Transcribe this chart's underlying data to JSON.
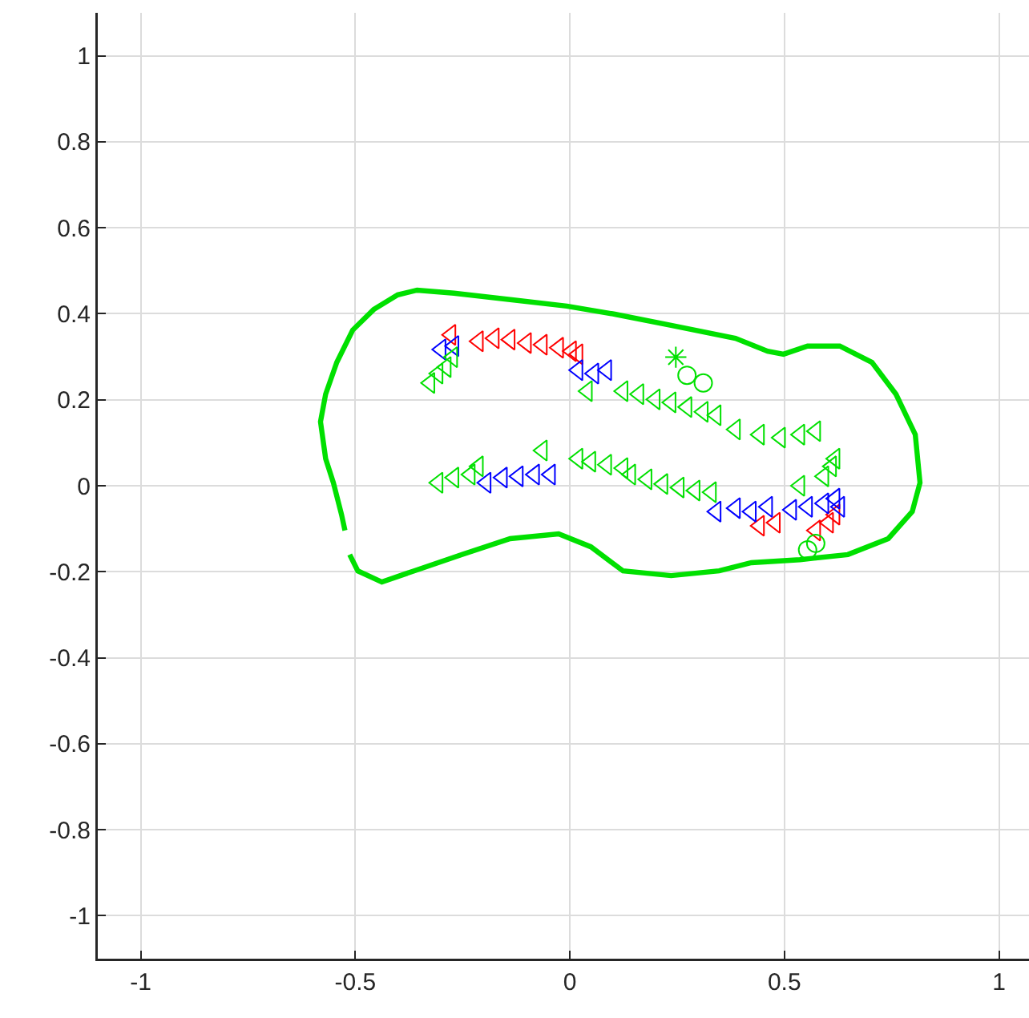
{
  "chart_data": {
    "type": "scatter",
    "xlim": [
      -1.1,
      1.07
    ],
    "ylim": [
      -1.1,
      1.1
    ],
    "xticks": [
      -1,
      -0.5,
      0,
      0.5,
      1
    ],
    "yticks": [
      -1,
      -0.8,
      -0.6,
      -0.4,
      -0.2,
      0,
      0.2,
      0.4,
      0.6,
      0.8,
      1
    ],
    "grid": true,
    "series": [
      {
        "type": "line",
        "marker": "none",
        "color": "#00e000",
        "x": [
          -0.513,
          -0.494,
          -0.438,
          -0.363,
          -0.251,
          -0.139,
          -0.026,
          0.049,
          0.124,
          0.236,
          0.348,
          0.423,
          0.536,
          0.648,
          0.742,
          0.798,
          0.816,
          0.805,
          0.76,
          0.704,
          0.629,
          0.554,
          0.498,
          0.461,
          0.386,
          0.236,
          0.105,
          -0.007,
          -0.139,
          -0.27,
          -0.356,
          -0.401,
          -0.457,
          -0.506,
          -0.543,
          -0.569,
          -0.581,
          -0.569,
          -0.551,
          -0.532,
          -0.524
        ],
        "values": [
          -0.16,
          -0.198,
          -0.224,
          -0.198,
          -0.16,
          -0.123,
          -0.112,
          -0.142,
          -0.198,
          -0.209,
          -0.198,
          -0.179,
          -0.172,
          -0.16,
          -0.123,
          -0.06,
          0.007,
          0.119,
          0.213,
          0.287,
          0.325,
          0.325,
          0.306,
          0.313,
          0.343,
          0.373,
          0.399,
          0.418,
          0.433,
          0.448,
          0.455,
          0.444,
          0.41,
          0.362,
          0.287,
          0.213,
          0.149,
          0.063,
          0.007,
          -0.067,
          -0.104
        ]
      },
      {
        "marker": "triangle",
        "color": "#ff0000",
        "x": [
          -0.277,
          -0.213,
          -0.176,
          -0.139,
          -0.101,
          -0.064,
          -0.026,
          0.004,
          0.019,
          0.442,
          0.479,
          0.573,
          0.603,
          0.618
        ],
        "values": [
          0.351,
          0.336,
          0.343,
          0.34,
          0.332,
          0.328,
          0.321,
          0.313,
          0.306,
          -0.093,
          -0.086,
          -0.104,
          -0.086,
          -0.067
        ]
      },
      {
        "marker": "triangle",
        "color": "#0000ff",
        "x": [
          -0.3,
          -0.27,
          0.019,
          0.056,
          0.086,
          -0.195,
          -0.157,
          -0.12,
          -0.082,
          -0.045,
          0.341,
          0.386,
          0.423,
          0.461,
          0.517,
          0.554,
          0.592,
          0.618,
          0.629
        ],
        "values": [
          0.317,
          0.325,
          0.269,
          0.261,
          0.269,
          0.007,
          0.019,
          0.022,
          0.026,
          0.026,
          -0.06,
          -0.052,
          -0.06,
          -0.049,
          -0.056,
          -0.049,
          -0.041,
          -0.03,
          -0.049
        ]
      },
      {
        "marker": "triangle",
        "color": "#00e000",
        "x": [
          -0.326,
          -0.307,
          -0.288,
          -0.273,
          -0.307,
          -0.27,
          -0.232,
          -0.213,
          -0.064,
          0.019,
          0.049,
          0.086,
          0.124,
          0.041,
          0.124,
          0.161,
          0.199,
          0.236,
          0.273,
          0.311,
          0.341,
          0.386,
          0.442,
          0.491,
          0.536,
          0.573,
          0.142,
          0.18,
          0.217,
          0.255,
          0.292,
          0.33,
          0.536,
          0.592,
          0.61,
          0.618
        ],
        "values": [
          0.239,
          0.261,
          0.276,
          0.299,
          0.007,
          0.019,
          0.026,
          0.045,
          0.082,
          0.063,
          0.056,
          0.049,
          0.041,
          0.22,
          0.22,
          0.213,
          0.201,
          0.194,
          0.183,
          0.172,
          0.164,
          0.131,
          0.119,
          0.112,
          0.119,
          0.127,
          0.026,
          0.015,
          0.004,
          -0.004,
          -0.011,
          -0.015,
          0,
          0.022,
          0.045,
          0.063
        ]
      },
      {
        "marker": "circle",
        "color": "#00e000",
        "x": [
          0.273,
          0.311,
          0.554,
          0.573
        ],
        "values": [
          0.257,
          0.239,
          -0.149,
          -0.134
        ]
      },
      {
        "marker": "cross",
        "color": "#00e000",
        "x": [
          0.247
        ],
        "values": [
          0.299
        ]
      }
    ]
  }
}
